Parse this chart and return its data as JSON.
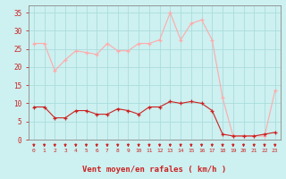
{
  "x": [
    0,
    1,
    2,
    3,
    4,
    5,
    6,
    7,
    8,
    9,
    10,
    11,
    12,
    13,
    14,
    15,
    16,
    17,
    18,
    19,
    20,
    21,
    22,
    23
  ],
  "rafales": [
    26.5,
    26.5,
    19,
    22,
    24.5,
    24,
    23.5,
    26.5,
    24.5,
    24.5,
    26.5,
    26.5,
    27.5,
    35,
    27.5,
    32,
    33,
    27.5,
    11.5,
    1,
    1,
    1,
    1,
    13.5
  ],
  "moyen": [
    9,
    9,
    6,
    6,
    8,
    8,
    7,
    7,
    8.5,
    8,
    7,
    9,
    9,
    10.5,
    10,
    10.5,
    10,
    8,
    1.5,
    1,
    1,
    1,
    1.5,
    2
  ],
  "bg_color": "#cdf0f0",
  "grid_color": "#aadddd",
  "line_color_rafales": "#ffaaaa",
  "line_color_moyen": "#cc2222",
  "arrow_color": "#cc2222",
  "xlabel": "Vent moyen/en rafales ( km/h )",
  "xlabel_color": "#cc2222",
  "tick_color": "#cc2222",
  "spine_color": "#888888",
  "ylim": [
    0,
    37
  ],
  "xlim": [
    -0.5,
    23.5
  ],
  "yticks": [
    0,
    5,
    10,
    15,
    20,
    25,
    30,
    35
  ],
  "xticks": [
    0,
    1,
    2,
    3,
    4,
    5,
    6,
    7,
    8,
    9,
    10,
    11,
    12,
    13,
    14,
    15,
    16,
    17,
    18,
    19,
    20,
    21,
    22,
    23
  ]
}
